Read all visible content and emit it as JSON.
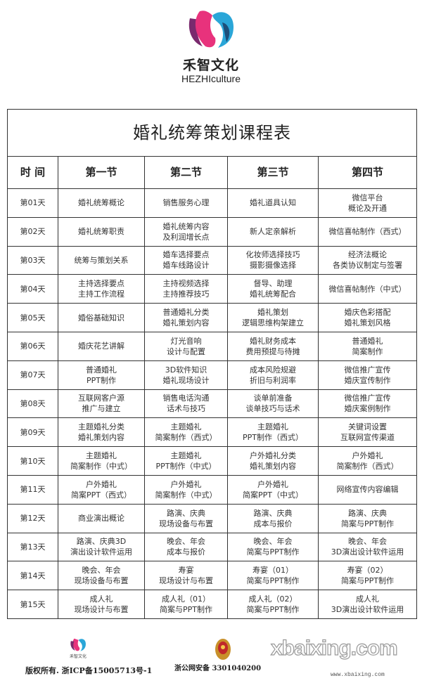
{
  "brand": {
    "name_cn": "禾智文化",
    "name_en": "HEZHIculture",
    "colors": {
      "pink": "#e8327c",
      "purple": "#7a2a6e",
      "blue": "#2aa6d8",
      "navy": "#1d4f7a"
    }
  },
  "table": {
    "title": "婚礼统筹策划课程表",
    "headers": [
      "时 间",
      "第一节",
      "第二节",
      "第三节",
      "第四节"
    ],
    "rows": [
      {
        "day": "第01天",
        "cells": [
          [
            "婚礼统筹概论"
          ],
          [
            "销售服务心理"
          ],
          [
            "婚礼道具认知"
          ],
          [
            "微信平台",
            "概论及开通"
          ]
        ]
      },
      {
        "day": "第02天",
        "cells": [
          [
            "婚礼统筹职责"
          ],
          [
            "婚礼统筹内容",
            "及利润增长点"
          ],
          [
            "新人定亲解析"
          ],
          [
            "微信喜帖制作（西式）"
          ]
        ]
      },
      {
        "day": "第03天",
        "cells": [
          [
            "统筹与策划关系"
          ],
          [
            "婚车选择要点",
            "婚车线路设计"
          ],
          [
            "化妆师选择技巧",
            "摄影摄像选择"
          ],
          [
            "经济法概论",
            "各类协议制定与签署"
          ]
        ]
      },
      {
        "day": "第04天",
        "cells": [
          [
            "主持选择要点",
            "主持工作流程"
          ],
          [
            "主持视频选择",
            "主持推荐技巧"
          ],
          [
            "督导、助理",
            "婚礼统筹配合"
          ],
          [
            "微信喜帖制作（中式）"
          ]
        ]
      },
      {
        "day": "第05天",
        "cells": [
          [
            "婚俗基础知识"
          ],
          [
            "普通婚礼分类",
            "婚礼策划内容"
          ],
          [
            "婚礼策划",
            "逻辑思维构架建立"
          ],
          [
            "婚庆色彩搭配",
            "婚礼策划风格"
          ]
        ]
      },
      {
        "day": "第06天",
        "cells": [
          [
            "婚庆花艺讲解"
          ],
          [
            "灯光音响",
            "设计与配置"
          ],
          [
            "婚礼财务成本",
            "费用预提与待摊"
          ],
          [
            "普通婚礼",
            "简案制作"
          ]
        ]
      },
      {
        "day": "第07天",
        "cells": [
          [
            "普通婚礼",
            "PPT制作"
          ],
          [
            "3D软件知识",
            "婚礼现场设计"
          ],
          [
            "成本风险规避",
            "折旧与利润率"
          ],
          [
            "微信推广宣传",
            "婚庆宣传制作"
          ]
        ]
      },
      {
        "day": "第08天",
        "cells": [
          [
            "互联网客户源",
            "推广与建立"
          ],
          [
            "销售电话沟通",
            "话术与技巧"
          ],
          [
            "谈单前准备",
            "谈单技巧与话术"
          ],
          [
            "微信推广宣传",
            "婚庆案例制作"
          ]
        ]
      },
      {
        "day": "第09天",
        "cells": [
          [
            "主题婚礼分类",
            "婚礼策划内容"
          ],
          [
            "主题婚礼",
            "简案制作（西式）"
          ],
          [
            "主题婚礼",
            "PPT制作（西式）"
          ],
          [
            "关键词设置",
            "互联网宣传渠道"
          ]
        ]
      },
      {
        "day": "第10天",
        "cells": [
          [
            "主题婚礼",
            "简案制作（中式）"
          ],
          [
            "主题婚礼",
            "PPT制作（中式）"
          ],
          [
            "户外婚礼分类",
            "婚礼策划内容"
          ],
          [
            "户外婚礼",
            "简案制作（西式）"
          ]
        ]
      },
      {
        "day": "第11天",
        "cells": [
          [
            "户外婚礼",
            "简案PPT（西式）"
          ],
          [
            "户外婚礼",
            "简案制作（中式）"
          ],
          [
            "户外婚礼",
            "简案PPT（中式）"
          ],
          [
            "网络宣传内容编辑"
          ]
        ]
      },
      {
        "day": "第12天",
        "cells": [
          [
            "商业演出概论"
          ],
          [
            "路演、庆典",
            "现场设备与布置"
          ],
          [
            "路演、庆典",
            "成本与报价"
          ],
          [
            "路演、庆典",
            "简案与PPT制作"
          ]
        ]
      },
      {
        "day": "第13天",
        "cells": [
          [
            "路演、庆典3D",
            "演出设计软件运用"
          ],
          [
            "晚会、年会",
            "成本与报价"
          ],
          [
            "晚会、年会",
            "简案与PPT制作"
          ],
          [
            "晚会、年会",
            "3D演出设计软件运用"
          ]
        ]
      },
      {
        "day": "第14天",
        "cells": [
          [
            "晚会、年会",
            "现场设备与布置"
          ],
          [
            "寿宴",
            "现场设计与布置"
          ],
          [
            "寿宴（01）",
            "简案与PPT制作"
          ],
          [
            "寿宴（02）",
            "简案与PPT制作"
          ]
        ]
      },
      {
        "day": "第15天",
        "cells": [
          [
            "成人礼",
            "现场设计与布置"
          ],
          [
            "成人礼（01）",
            "简案与PPT制作"
          ],
          [
            "成人礼（02）",
            "简案与PPT制作"
          ],
          [
            "成人礼",
            "3D演出设计软件运用"
          ]
        ]
      }
    ]
  },
  "footer": {
    "logo_text": "禾智文化 HEZHIculture",
    "copyright": "版权所有. 浙ICP备15005713号-1",
    "police_record": "浙公网安备 3301040200",
    "watermark": "xbaixing.com",
    "watermark_url": "www.xbaixing.com"
  }
}
